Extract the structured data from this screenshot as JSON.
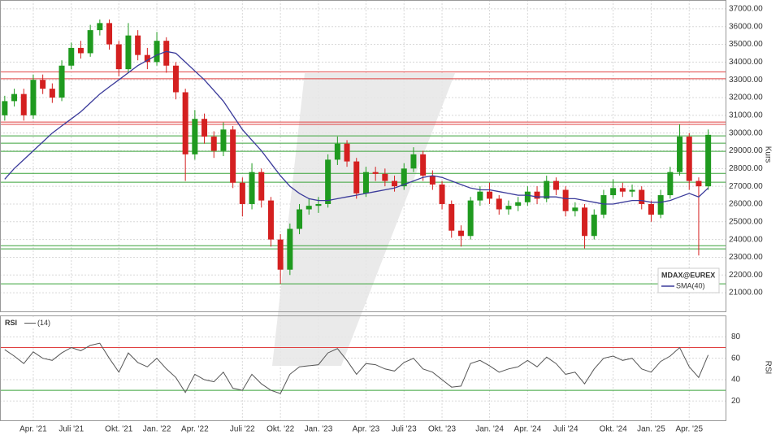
{
  "chart_data": [
    {
      "type": "candlestick",
      "name": "MDAX@EUREX",
      "y_label": "Kurs",
      "up_color": "#1f9a1f",
      "down_color": "#d42020",
      "categories": [
        null,
        null,
        null,
        "Apr. '21",
        null,
        null,
        null,
        "Juli '21",
        null,
        null,
        null,
        null,
        "Okt. '21",
        null,
        null,
        null,
        "Jan. '22",
        null,
        null,
        null,
        "Apr. '22",
        null,
        null,
        null,
        null,
        "Juli '22",
        null,
        null,
        null,
        "Okt. '22",
        null,
        null,
        null,
        "Jan. '23",
        null,
        null,
        null,
        null,
        "Apr. '23",
        null,
        null,
        null,
        "Juli '23",
        null,
        null,
        null,
        "Okt. '23",
        null,
        null,
        null,
        null,
        "Jan. '24",
        null,
        null,
        null,
        "Apr. '24",
        null,
        null,
        null,
        "Juli '24",
        null,
        null,
        null,
        null,
        "Okt. '24",
        null,
        null,
        null,
        "Jan. '25",
        null,
        null,
        null,
        "Apr. '25",
        null,
        null
      ],
      "open": [
        31000,
        31800,
        32200,
        31000,
        33000,
        32500,
        32000,
        33800,
        34800,
        34500,
        35800,
        36200,
        35000,
        33600,
        35500,
        34400,
        34000,
        35200,
        33800,
        32300,
        28800,
        30800,
        29800,
        29000,
        30200,
        27200,
        26000,
        27800,
        26200,
        24000,
        22300,
        24600,
        25700,
        25900,
        26000,
        28500,
        29400,
        28400,
        26600,
        27800,
        27700,
        27300,
        27000,
        28000,
        28800,
        27600,
        27100,
        26000,
        24500,
        24200,
        26200,
        26700,
        26300,
        25700,
        25900,
        26100,
        26700,
        26300,
        27300,
        26800,
        25600,
        25800,
        24200,
        25400,
        26500,
        26900,
        26700,
        26800,
        26000,
        25400,
        26500,
        27800,
        29800,
        27300,
        27000
      ],
      "high": [
        32100,
        32500,
        32500,
        33300,
        33300,
        32800,
        34100,
        35100,
        35200,
        36100,
        36400,
        36400,
        35200,
        36200,
        35800,
        34800,
        35700,
        35400,
        34000,
        32500,
        31300,
        31100,
        30100,
        30600,
        30400,
        27500,
        28300,
        28000,
        26400,
        24300,
        24900,
        26000,
        26300,
        26400,
        28800,
        29800,
        29600,
        28600,
        28100,
        28100,
        28000,
        27600,
        28300,
        29200,
        29000,
        27900,
        27300,
        26200,
        24800,
        26400,
        27000,
        27200,
        26500,
        26200,
        26400,
        27000,
        27000,
        27600,
        27500,
        27000,
        26100,
        26000,
        25700,
        26800,
        27400,
        27200,
        27100,
        27000,
        26200,
        26800,
        28100,
        30500,
        30000,
        27500,
        30200
      ],
      "low": [
        30700,
        31500,
        30700,
        30800,
        32200,
        31700,
        31800,
        33600,
        34200,
        34300,
        35500,
        34700,
        33200,
        33400,
        34100,
        33600,
        33800,
        33400,
        31900,
        27300,
        28500,
        29400,
        28600,
        28700,
        26900,
        25300,
        25700,
        25800,
        23600,
        21500,
        22000,
        24300,
        25400,
        25500,
        25800,
        28200,
        28100,
        26300,
        26400,
        27300,
        27000,
        26700,
        26800,
        27800,
        27300,
        26800,
        25700,
        24100,
        23600,
        24000,
        25900,
        26000,
        25400,
        25400,
        25600,
        25900,
        26000,
        26100,
        26500,
        25300,
        25300,
        23500,
        24000,
        25200,
        26300,
        26400,
        26400,
        25700,
        25000,
        25200,
        26300,
        27600,
        26800,
        23100,
        26800
      ],
      "close": [
        31800,
        32200,
        31000,
        33000,
        32500,
        32000,
        33800,
        34800,
        34500,
        35800,
        36200,
        35000,
        33600,
        35500,
        34400,
        34000,
        35200,
        33800,
        32300,
        28800,
        30800,
        29800,
        29000,
        30200,
        27200,
        26000,
        27800,
        26200,
        24000,
        22300,
        24600,
        25700,
        25900,
        26000,
        28500,
        29400,
        28400,
        26600,
        27800,
        27700,
        27300,
        27000,
        28000,
        28800,
        27600,
        27100,
        26000,
        24500,
        24200,
        26200,
        26700,
        26300,
        25700,
        25900,
        26100,
        26700,
        26300,
        27300,
        26800,
        25600,
        25800,
        24200,
        25400,
        26500,
        26900,
        26700,
        26800,
        26000,
        25400,
        26500,
        27800,
        29800,
        27300,
        27000,
        29900
      ],
      "series": [
        {
          "name": "SMA(40)",
          "color": "#3a3a9a",
          "values": [
            27400,
            28000,
            28500,
            29000,
            29500,
            30000,
            30400,
            30800,
            31200,
            31700,
            32200,
            32600,
            33000,
            33400,
            33800,
            34100,
            34400,
            34600,
            34500,
            34000,
            33500,
            33000,
            32400,
            31800,
            31000,
            30200,
            29600,
            29000,
            28300,
            27600,
            27000,
            26600,
            26300,
            26200,
            26200,
            26300,
            26400,
            26500,
            26600,
            26700,
            26800,
            26900,
            27100,
            27300,
            27500,
            27600,
            27500,
            27300,
            27100,
            26900,
            26800,
            26800,
            26700,
            26600,
            26500,
            26500,
            26400,
            26400,
            26400,
            26300,
            26300,
            26200,
            26100,
            26000,
            26000,
            26100,
            26200,
            26200,
            26100,
            26100,
            26200,
            26400,
            26600,
            26400,
            26900
          ]
        }
      ],
      "levels": [
        {
          "value": 33450,
          "color": "#e04040"
        },
        {
          "value": 33060,
          "color": "#e04040"
        },
        {
          "value": 30620,
          "color": "#e04040"
        },
        {
          "value": 30490,
          "color": "#e04040"
        },
        {
          "value": 29840,
          "color": "#3aa33a"
        },
        {
          "value": 29430,
          "color": "#3aa33a"
        },
        {
          "value": 28970,
          "color": "#3aa33a"
        },
        {
          "value": 27730,
          "color": "#3aa33a"
        },
        {
          "value": 27230,
          "color": "#3aa33a"
        },
        {
          "value": 23650,
          "color": "#3aa33a"
        },
        {
          "value": 23470,
          "color": "#3aa33a"
        },
        {
          "value": 21500,
          "color": "#3aa33a"
        }
      ],
      "ylim": [
        19950,
        37500
      ],
      "yticks": [
        {
          "value": 21000,
          "label": "21000.00"
        },
        {
          "value": 22000,
          "label": "22000.00"
        },
        {
          "value": 23000,
          "label": "23000.00"
        },
        {
          "value": 24000,
          "label": "24000.00"
        },
        {
          "value": 25000,
          "label": "25000.00"
        },
        {
          "value": 26000,
          "label": "26000.00"
        },
        {
          "value": 27000,
          "label": "27000.00"
        },
        {
          "value": 28000,
          "label": "28000.00"
        },
        {
          "value": 29000,
          "label": "29000.00"
        },
        {
          "value": 30000,
          "label": "30000.00"
        },
        {
          "value": 31000,
          "label": "31000.00"
        },
        {
          "value": 32000,
          "label": "32000.00"
        },
        {
          "value": 33000,
          "label": "33000.00"
        },
        {
          "value": 34000,
          "label": "34000.00"
        },
        {
          "value": 35000,
          "label": "35000.00"
        },
        {
          "value": 36000,
          "label": "36000.00"
        },
        {
          "value": 37000,
          "label": "37000.00"
        }
      ],
      "grid": true
    },
    {
      "type": "line",
      "title": "RSI",
      "y_label": "RSI",
      "series": [
        {
          "name": "(14)",
          "color": "#555555",
          "values": [
            68,
            62,
            55,
            66,
            60,
            58,
            65,
            70,
            67,
            72,
            74,
            60,
            47,
            65,
            56,
            52,
            60,
            50,
            42,
            28,
            45,
            40,
            38,
            47,
            32,
            30,
            45,
            36,
            30,
            27,
            45,
            52,
            53,
            54,
            65,
            69,
            58,
            45,
            55,
            54,
            50,
            48,
            56,
            60,
            50,
            47,
            40,
            33,
            34,
            55,
            58,
            53,
            47,
            50,
            52,
            58,
            52,
            61,
            55,
            45,
            47,
            36,
            50,
            60,
            62,
            58,
            60,
            50,
            47,
            57,
            62,
            70,
            52,
            42,
            63
          ]
        }
      ],
      "levels": [
        {
          "value": 70,
          "color": "#e04040"
        },
        {
          "value": 30,
          "color": "#3aa33a"
        }
      ],
      "ylim": [
        2,
        100
      ],
      "yticks": [
        20,
        40,
        60,
        80
      ],
      "grid": true
    }
  ]
}
